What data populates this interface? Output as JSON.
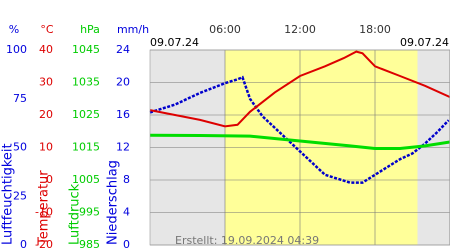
{
  "chart_data": {
    "type": "line",
    "date_left": "09.07.24",
    "date_right": "09.07.24",
    "footer": "Erstellt: 19.09.2024 04:39",
    "xlim": [
      0,
      24
    ],
    "xticks": [
      {
        "value": 6,
        "label": "06:00"
      },
      {
        "value": 12,
        "label": "12:00"
      },
      {
        "value": 18,
        "label": "18:00"
      }
    ],
    "daylight": [
      6,
      21.4
    ],
    "grid": true,
    "axes": [
      {
        "unit": "%",
        "label": "Luftfeuchtigkeit",
        "color": "#0000dd",
        "lim": [
          0,
          100
        ],
        "ticks": [
          0,
          25,
          50,
          75,
          100
        ]
      },
      {
        "unit": "°C",
        "label": "Temperatur",
        "color": "#dd0000",
        "lim": [
          -20,
          40
        ],
        "ticks": [
          -20,
          -10,
          0,
          10,
          20,
          30,
          40
        ]
      },
      {
        "unit": "hPa",
        "label": "Luftdruck",
        "color": "#00cc00",
        "lim": [
          985,
          1045
        ],
        "ticks": [
          985,
          995,
          1005,
          1015,
          1025,
          1035,
          1045
        ]
      },
      {
        "unit": "mm/h",
        "label": "Niederschlag",
        "color": "#0000dd",
        "lim": [
          0,
          24
        ],
        "ticks": [
          0,
          4,
          8,
          12,
          16,
          20,
          24
        ]
      }
    ],
    "series": [
      {
        "axis": 0,
        "color": "#0000cc",
        "width": 2.5,
        "x": [
          0,
          2,
          4,
          6,
          7,
          7.4,
          8,
          9,
          10,
          11,
          12,
          13,
          14,
          15,
          16,
          17,
          18,
          19,
          20,
          21,
          22,
          23,
          23.9
        ],
        "values": [
          68,
          72,
          78,
          83,
          85,
          86,
          75,
          66,
          60,
          54,
          48,
          42,
          36,
          34,
          32,
          32,
          36,
          40,
          44,
          47,
          52,
          58,
          64
        ]
      },
      {
        "axis": 1,
        "color": "#dd0000",
        "width": 2,
        "x": [
          0,
          2,
          4,
          6,
          7,
          8,
          10,
          12,
          14,
          15.5,
          16.5,
          17,
          18,
          20,
          22,
          24
        ],
        "values": [
          21.5,
          20,
          18.5,
          16.5,
          17,
          21,
          27,
          32,
          35,
          37.5,
          39.5,
          39,
          35,
          32,
          29,
          25.5
        ]
      },
      {
        "axis": 2,
        "color": "#00dd00",
        "width": 3,
        "x": [
          0,
          4,
          8,
          12,
          16,
          18,
          20,
          22,
          24
        ],
        "values": [
          1018.8,
          1018.7,
          1018.5,
          1017,
          1015.5,
          1014.7,
          1014.7,
          1015.5,
          1016.7
        ]
      }
    ]
  }
}
